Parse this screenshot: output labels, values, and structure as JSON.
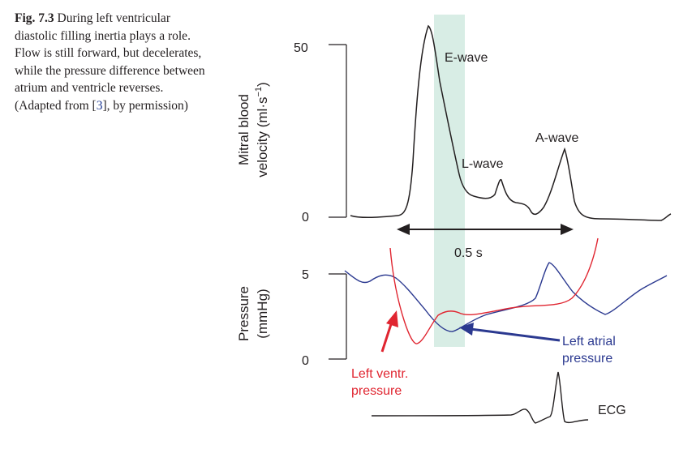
{
  "caption": {
    "label": "Fig. 7.3",
    "text_before_ref": "During left ventricular diastolic filling inertia plays a role. Flow is still forward, but decelerates, while the pressure difference between atrium and ventricle reverses. (Adapted from [",
    "ref": "3",
    "text_after_ref": "], by permission)"
  },
  "top_panel": {
    "ylabel_line1": "Mitral blood",
    "ylabel_line2": "velocity (ml·s",
    "ylabel_sup": "−1",
    "ylabel_close": ")",
    "ytick_top": "50",
    "ytick_bottom": "0",
    "e_wave": "E-wave",
    "l_wave": "L-wave",
    "a_wave": "A-wave",
    "interval": "0.5 s"
  },
  "bottom_panel": {
    "ylabel_line1": "Pressure",
    "ylabel_line2": "(mmHg)",
    "ytick_top": "5",
    "ytick_bottom": "0",
    "lv_label_line1": "Left ventr.",
    "lv_label_line2": "pressure",
    "la_label_line1": "Left atrial",
    "la_label_line2": "pressure",
    "ecg": "ECG"
  },
  "colors": {
    "highlight": "#d8ede5",
    "lv_pressure": "#e02530",
    "la_pressure": "#2b3990",
    "ink": "#231f20"
  }
}
